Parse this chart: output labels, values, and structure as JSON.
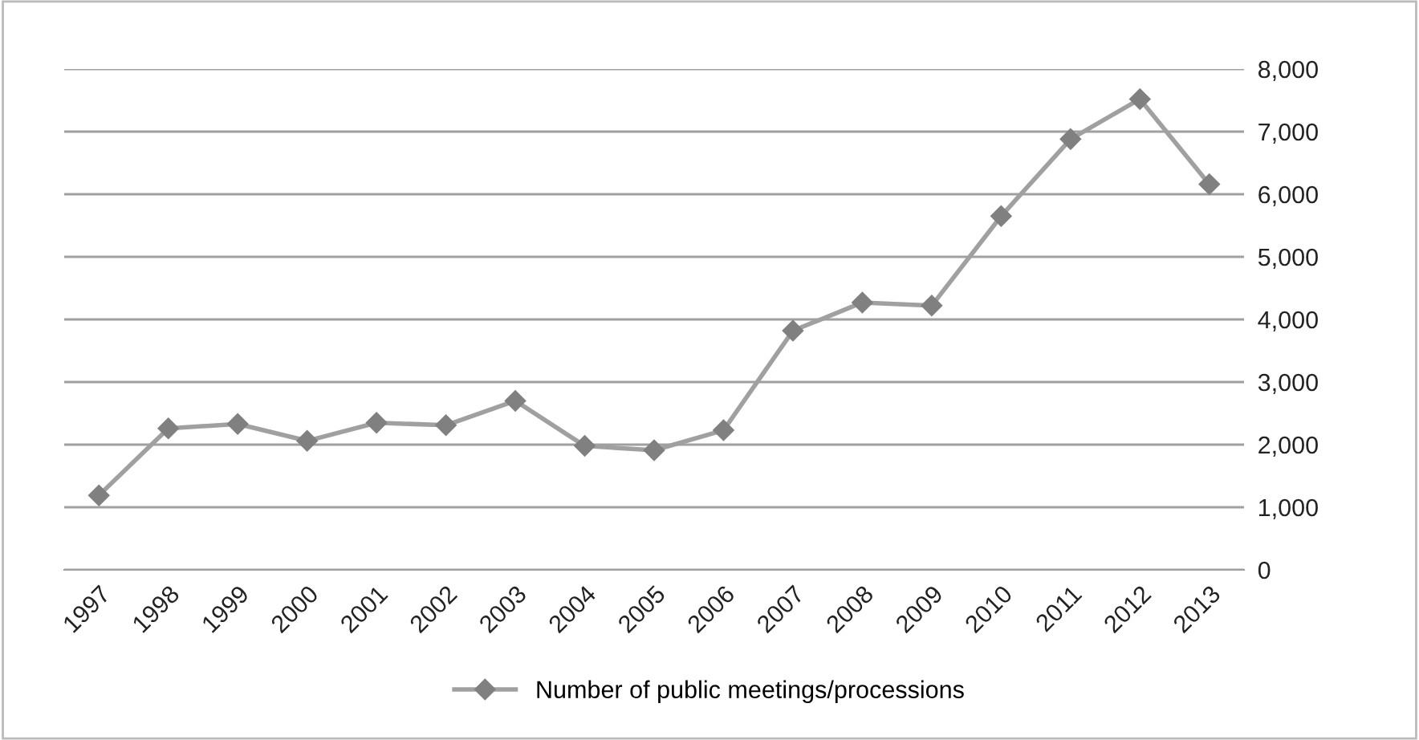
{
  "chart_data": {
    "type": "line",
    "categories": [
      "1997",
      "1998",
      "1999",
      "2000",
      "2001",
      "2002",
      "2003",
      "2004",
      "2005",
      "2006",
      "2007",
      "2008",
      "2009",
      "2010",
      "2011",
      "2012",
      "2013"
    ],
    "series": [
      {
        "name": "Number of public meetings/processions",
        "color": "#a0a0a0",
        "values": [
          1190,
          2260,
          2330,
          2060,
          2350,
          2310,
          2700,
          1980,
          1910,
          2230,
          3820,
          4270,
          4220,
          5650,
          6880,
          7520,
          6160
        ]
      }
    ],
    "ylim": [
      0,
      8000
    ],
    "yticks": [
      {
        "value": 0,
        "label": "0"
      },
      {
        "value": 1000,
        "label": "1,000"
      },
      {
        "value": 2000,
        "label": "2,000"
      },
      {
        "value": 3000,
        "label": "3,000"
      },
      {
        "value": 4000,
        "label": "4,000"
      },
      {
        "value": 5000,
        "label": "5,000"
      },
      {
        "value": 6000,
        "label": "6,000"
      },
      {
        "value": 7000,
        "label": "7,000"
      },
      {
        "value": 8000,
        "label": "8,000"
      }
    ],
    "grid": "y",
    "legend": "bottom",
    "marker": "diamond",
    "line_style": "solid"
  }
}
